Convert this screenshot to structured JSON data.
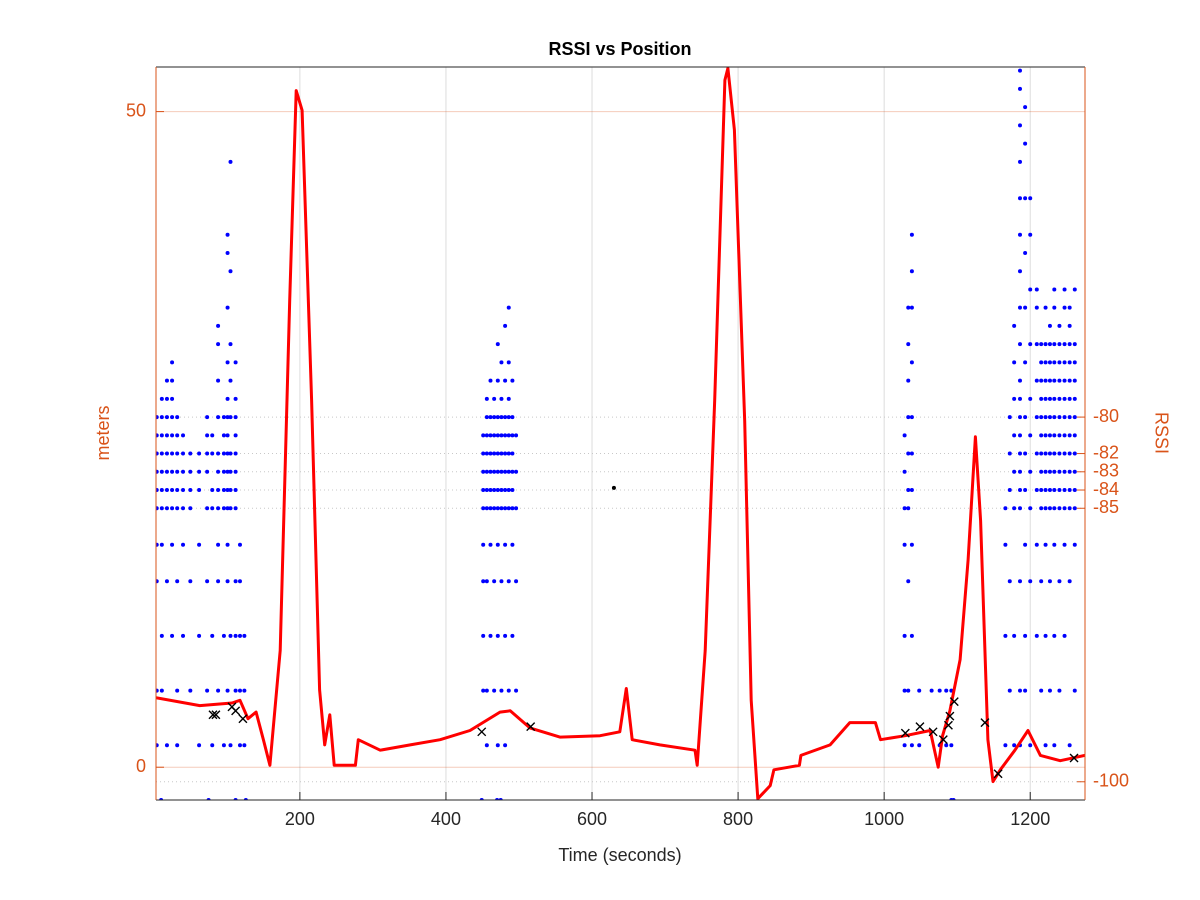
{
  "chart_data": {
    "type": "line",
    "title": "RSSI vs Position",
    "x_label": "Time (seconds)",
    "y_label": "meters",
    "y2_label": "RSSI",
    "xlim": [
      3,
      1275
    ],
    "xticks": [
      200,
      400,
      600,
      800,
      1000,
      1200
    ],
    "ylim": [
      -2.5,
      53.4
    ],
    "yticks": [
      0,
      50
    ],
    "y2lim": [
      -101,
      -60.8
    ],
    "y2ticks": [
      -100,
      -85,
      -84,
      -83,
      -82,
      -80
    ],
    "y_color": "#d95319",
    "y2_color": "#d95319",
    "grid": true,
    "series": [
      {
        "type": "line",
        "axis": "y",
        "color": "#ff0000",
        "x": [
          3,
          63,
          107,
          118,
          129,
          140,
          150,
          159,
          173,
          186,
          195,
          203,
          216,
          227,
          234,
          241,
          247,
          276,
          280,
          310,
          351,
          392,
          433,
          474,
          488,
          515,
          556,
          611,
          638,
          647,
          655,
          693,
          741,
          744,
          755,
          768,
          782,
          786,
          795,
          809,
          818,
          827,
          844,
          849,
          884,
          886,
          926,
          953,
          988,
          995,
          1029,
          1063,
          1074,
          1080,
          1090,
          1104,
          1115,
          1125,
          1132,
          1142,
          1149,
          1159,
          1179,
          1197,
          1214,
          1241,
          1275
        ],
        "values": [
          5.3,
          4.7,
          4.9,
          5.1,
          3.7,
          4.2,
          2.1,
          0.15,
          8.9,
          35.6,
          51.6,
          50.1,
          28.0,
          5.9,
          1.7,
          4.0,
          0.15,
          0.15,
          2.1,
          1.3,
          1.7,
          2.1,
          2.8,
          4.2,
          4.3,
          3.0,
          2.3,
          2.4,
          2.7,
          6.0,
          2.1,
          1.7,
          1.3,
          0.15,
          8.9,
          28.0,
          52.4,
          53.3,
          48.6,
          26.4,
          5.1,
          -2.4,
          -1.4,
          -0.2,
          0.15,
          0.9,
          1.7,
          3.4,
          3.4,
          2.1,
          2.4,
          2.8,
          0,
          2.4,
          4.3,
          8.2,
          15.8,
          25.2,
          18.8,
          2.1,
          -1.1,
          -0.2,
          1.3,
          2.8,
          0.9,
          0.5,
          0.9
        ]
      },
      {
        "type": "scatter",
        "axis": "y2",
        "color": "#0000ff",
        "x": [
          4,
          4,
          4,
          4,
          4,
          4,
          4,
          4,
          4,
          4,
          11,
          11,
          11,
          11,
          11,
          11,
          11,
          11,
          11,
          11,
          18,
          18,
          18,
          18,
          18,
          18,
          18,
          18,
          18,
          18,
          25,
          25,
          25,
          25,
          25,
          25,
          25,
          25,
          25,
          25,
          25,
          32,
          32,
          32,
          32,
          32,
          32,
          32,
          32,
          32,
          40,
          40,
          40,
          40,
          40,
          40,
          40,
          50,
          50,
          50,
          50,
          50,
          50,
          62,
          62,
          62,
          62,
          62,
          62,
          73,
          73,
          73,
          73,
          73,
          73,
          73,
          80,
          80,
          80,
          80,
          80,
          80,
          88,
          88,
          88,
          88,
          88,
          88,
          88,
          88,
          88,
          88,
          88,
          96,
          96,
          96,
          96,
          96,
          96,
          96,
          96,
          101,
          101,
          101,
          101,
          101,
          101,
          101,
          101,
          101,
          101,
          101,
          101,
          101,
          101,
          105,
          105,
          105,
          105,
          105,
          105,
          105,
          105,
          105,
          105,
          105,
          112,
          112,
          112,
          112,
          112,
          112,
          112,
          112,
          112,
          112,
          112,
          118,
          118,
          118,
          118,
          118,
          124,
          124,
          124,
          10,
          75,
          112,
          126,
          451,
          451,
          451,
          451,
          451,
          451,
          451,
          451,
          451,
          456,
          456,
          456,
          456,
          456,
          456,
          456,
          456,
          456,
          456,
          461,
          461,
          461,
          461,
          461,
          461,
          461,
          461,
          461,
          466,
          466,
          466,
          466,
          466,
          466,
          466,
          466,
          466,
          471,
          471,
          471,
          471,
          471,
          471,
          471,
          471,
          471,
          471,
          471,
          476,
          476,
          476,
          476,
          476,
          476,
          476,
          476,
          476,
          476,
          481,
          481,
          481,
          481,
          481,
          481,
          481,
          481,
          481,
          481,
          481,
          486,
          486,
          486,
          486,
          486,
          486,
          486,
          486,
          486,
          486,
          486,
          491,
          491,
          491,
          491,
          491,
          491,
          491,
          491,
          491,
          496,
          496,
          496,
          496,
          496,
          449,
          470,
          475,
          1028,
          1028,
          1028,
          1028,
          1028,
          1028,
          1028,
          1033,
          1033,
          1033,
          1033,
          1033,
          1033,
          1033,
          1033,
          1033,
          1038,
          1038,
          1038,
          1038,
          1038,
          1038,
          1038,
          1038,
          1038,
          1038,
          1048,
          1048,
          1065,
          1076,
          1076,
          1085,
          1085,
          1092,
          1092,
          1092,
          1095,
          1166,
          1166,
          1166,
          1166,
          1172,
          1172,
          1172,
          1172,
          1172,
          1178,
          1178,
          1178,
          1178,
          1178,
          1178,
          1178,
          1178,
          1186,
          1186,
          1186,
          1186,
          1186,
          1186,
          1186,
          1186,
          1186,
          1186,
          1186,
          1186,
          1186,
          1186,
          1186,
          1186,
          1186,
          1186,
          1186,
          1186,
          1193,
          1193,
          1193,
          1193,
          1193,
          1193,
          1193,
          1193,
          1193,
          1193,
          1193,
          1193,
          1200,
          1200,
          1200,
          1200,
          1200,
          1200,
          1200,
          1200,
          1200,
          1200,
          1209,
          1209,
          1209,
          1209,
          1209,
          1209,
          1209,
          1209,
          1209,
          1215,
          1215,
          1215,
          1215,
          1215,
          1215,
          1215,
          1215,
          1215,
          1215,
          1215,
          1215,
          1221,
          1221,
          1221,
          1221,
          1221,
          1221,
          1221,
          1221,
          1221,
          1221,
          1221,
          1221,
          1221,
          1221,
          1227,
          1227,
          1227,
          1227,
          1227,
          1227,
          1227,
          1227,
          1227,
          1227,
          1227,
          1227,
          1227,
          1233,
          1233,
          1233,
          1233,
          1233,
          1233,
          1233,
          1233,
          1233,
          1233,
          1233,
          1233,
          1233,
          1233,
          1233,
          1240,
          1240,
          1240,
          1240,
          1240,
          1240,
          1240,
          1240,
          1240,
          1240,
          1240,
          1240,
          1240,
          1247,
          1247,
          1247,
          1247,
          1247,
          1247,
          1247,
          1247,
          1247,
          1247,
          1247,
          1247,
          1247,
          1247,
          1254,
          1254,
          1254,
          1254,
          1254,
          1254,
          1254,
          1254,
          1254,
          1254,
          1254,
          1254,
          1254,
          1254,
          1261,
          1261,
          1261,
          1261,
          1261,
          1261,
          1261,
          1261,
          1261,
          1261,
          1261,
          1261,
          1261
        ],
        "values": [
          -98,
          -95,
          -89,
          -87,
          -85,
          -84,
          -83,
          -82,
          -81,
          -80,
          -95,
          -92,
          -87,
          -85,
          -84,
          -83,
          -82,
          -81,
          -80,
          -79,
          -98,
          -89,
          -85,
          -84,
          -83,
          -82,
          -81,
          -80,
          -79,
          -78,
          -92,
          -87,
          -85,
          -84,
          -83,
          -82,
          -81,
          -80,
          -79,
          -78,
          -77,
          -98,
          -95,
          -89,
          -85,
          -84,
          -83,
          -82,
          -81,
          -80,
          -92,
          -87,
          -85,
          -84,
          -83,
          -82,
          -81,
          -95,
          -89,
          -85,
          -84,
          -83,
          -82,
          -98,
          -92,
          -87,
          -84,
          -83,
          -82,
          -95,
          -89,
          -85,
          -83,
          -82,
          -81,
          -80,
          -98,
          -92,
          -85,
          -84,
          -82,
          -81,
          -95,
          -89,
          -87,
          -85,
          -84,
          -83,
          -82,
          -80,
          -78,
          -76,
          -75,
          -98,
          -92,
          -85,
          -84,
          -83,
          -82,
          -81,
          -80,
          -95,
          -89,
          -87,
          -85,
          -84,
          -83,
          -82,
          -81,
          -80,
          -79,
          -77,
          -74,
          -71,
          -70,
          -98,
          -92,
          -85,
          -84,
          -83,
          -82,
          -80,
          -78,
          -76,
          -72,
          -66,
          -95,
          -92,
          -89,
          -85,
          -84,
          -83,
          -82,
          -81,
          -80,
          -79,
          -77,
          -98,
          -95,
          -92,
          -89,
          -87,
          -98,
          -95,
          -92,
          -101,
          -101,
          -101,
          -101,
          -95,
          -92,
          -89,
          -87,
          -85,
          -84,
          -83,
          -82,
          -81,
          -98,
          -95,
          -89,
          -85,
          -84,
          -83,
          -82,
          -81,
          -80,
          -79,
          -92,
          -87,
          -85,
          -84,
          -83,
          -82,
          -81,
          -80,
          -78,
          -95,
          -89,
          -85,
          -84,
          -83,
          -82,
          -81,
          -80,
          -79,
          -98,
          -92,
          -87,
          -85,
          -84,
          -83,
          -82,
          -81,
          -80,
          -78,
          -76,
          -95,
          -89,
          -85,
          -84,
          -83,
          -82,
          -81,
          -80,
          -79,
          -77,
          -98,
          -92,
          -87,
          -85,
          -84,
          -83,
          -82,
          -81,
          -80,
          -78,
          -75,
          -95,
          -89,
          -85,
          -84,
          -83,
          -82,
          -81,
          -80,
          -79,
          -77,
          -74,
          -92,
          -87,
          -85,
          -84,
          -83,
          -82,
          -81,
          -80,
          -78,
          -95,
          -89,
          -85,
          -83,
          -81,
          -101,
          -101,
          -101,
          -98,
          -95,
          -92,
          -87,
          -85,
          -83,
          -81,
          -95,
          -89,
          -85,
          -84,
          -82,
          -80,
          -78,
          -76,
          -74,
          -98,
          -92,
          -87,
          -84,
          -82,
          -80,
          -77,
          -74,
          -72,
          -70,
          -98,
          -95,
          -95,
          -95,
          -98,
          -98,
          -95,
          -101,
          -98,
          -95,
          -101,
          -98,
          -92,
          -87,
          -85,
          -95,
          -89,
          -84,
          -82,
          -80,
          -98,
          -92,
          -85,
          -83,
          -81,
          -79,
          -77,
          -75,
          -98,
          -95,
          -89,
          -85,
          -84,
          -83,
          -82,
          -81,
          -80,
          -79,
          -78,
          -76,
          -74,
          -72,
          -70,
          -68,
          -66,
          -64,
          -62,
          -61,
          -95,
          -92,
          -87,
          -84,
          -82,
          -80,
          -77,
          -74,
          -71,
          -68,
          -65,
          -63,
          -98,
          -89,
          -85,
          -83,
          -81,
          -79,
          -76,
          -73,
          -70,
          -68,
          -92,
          -87,
          -84,
          -82,
          -80,
          -78,
          -76,
          -74,
          -73,
          -95,
          -89,
          -85,
          -84,
          -83,
          -82,
          -81,
          -80,
          -79,
          -78,
          -77,
          -76,
          -98,
          -92,
          -87,
          -85,
          -84,
          -83,
          -82,
          -81,
          -80,
          -79,
          -78,
          -77,
          -76,
          -74,
          -95,
          -89,
          -85,
          -84,
          -83,
          -82,
          -81,
          -80,
          -79,
          -78,
          -77,
          -76,
          -75,
          -98,
          -92,
          -87,
          -85,
          -84,
          -83,
          -82,
          -81,
          -80,
          -79,
          -78,
          -77,
          -76,
          -74,
          -73,
          -95,
          -89,
          -85,
          -84,
          -83,
          -82,
          -81,
          -80,
          -79,
          -78,
          -77,
          -76,
          -75,
          -92,
          -87,
          -85,
          -84,
          -83,
          -82,
          -81,
          -80,
          -79,
          -78,
          -77,
          -76,
          -74,
          -73,
          -98,
          -89,
          -85,
          -84,
          -83,
          -82,
          -81,
          -80,
          -79,
          -78,
          -77,
          -76,
          -75,
          -74,
          -95,
          -87,
          -85,
          -84,
          -83,
          -82,
          -81,
          -80,
          -79,
          -78,
          -77,
          -76,
          -73
        ]
      },
      {
        "type": "scatter",
        "marker": "x",
        "axis": "y",
        "color": "#000000",
        "x": [
          81,
          85,
          107,
          112,
          122,
          449,
          516,
          1029,
          1049,
          1067,
          1081,
          1088,
          1090,
          1096,
          1138,
          1156,
          1260
        ],
        "values": [
          4.0,
          4.0,
          4.6,
          4.3,
          3.7,
          2.7,
          3.1,
          2.6,
          3.1,
          2.7,
          2.1,
          3.2,
          3.9,
          5.0,
          3.4,
          -0.5,
          0.7
        ]
      },
      {
        "type": "scatter",
        "axis": "y",
        "color": "#000000",
        "x": [
          630
        ],
        "values": [
          21.3
        ]
      }
    ]
  }
}
